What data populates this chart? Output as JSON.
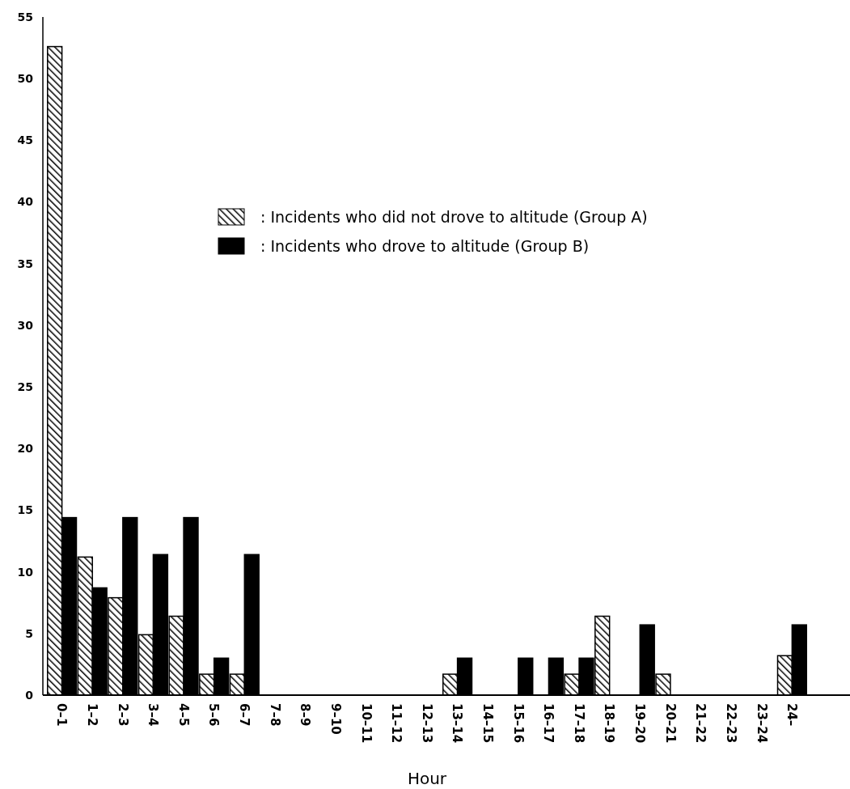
{
  "chart_data": {
    "type": "bar",
    "xlabel": "Hour",
    "categories": [
      "0–1",
      "1–2",
      "2–3",
      "3–4",
      "4–5",
      "5–6",
      "6–7",
      "7–8",
      "8–9",
      "9–10",
      "10–11",
      "11–12",
      "12–13",
      "13–14",
      "14–15",
      "15–16",
      "16–17",
      "17–18",
      "18–19",
      "19–20",
      "20–21",
      "21–22",
      "22–23",
      "23–24",
      "24–"
    ],
    "series": [
      {
        "name": ": Incidents who did not drove to altitude (Group A)",
        "color": "#000000",
        "values": [
          52.6,
          11.2,
          7.9,
          4.9,
          6.4,
          1.7,
          1.7,
          0,
          0,
          0,
          0,
          0,
          0,
          1.7,
          0,
          0,
          0,
          1.7,
          6.4,
          0,
          1.7,
          0,
          0,
          0,
          3.2
        ]
      },
      {
        "name": ": Incidents who drove to altitude (Group B)",
        "color": "#000000",
        "values": [
          14.4,
          8.7,
          14.4,
          11.4,
          14.4,
          3.0,
          11.4,
          0,
          0,
          0,
          0,
          0,
          0,
          3.0,
          0,
          3.0,
          3.0,
          3.0,
          0,
          5.7,
          0,
          0,
          0,
          0,
          5.7
        ]
      }
    ],
    "ylim": [
      0,
      55
    ],
    "yticks": [
      0,
      5,
      10,
      15,
      20,
      25,
      30,
      35,
      40,
      45,
      50,
      55
    ],
    "grid": false,
    "legend": "top"
  }
}
